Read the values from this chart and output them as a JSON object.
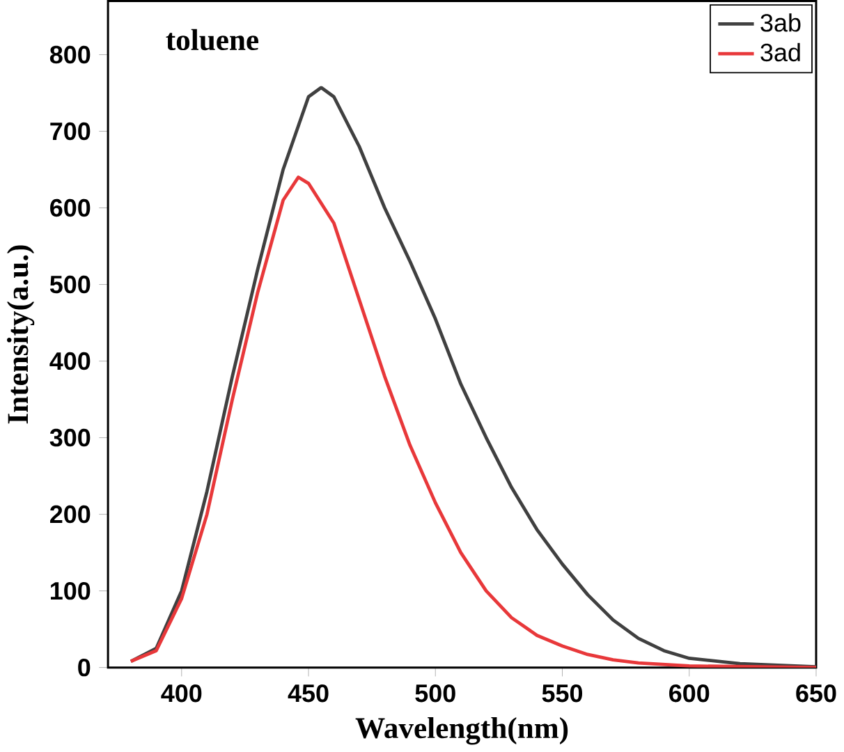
{
  "chart_data": {
    "type": "line",
    "xlabel": "Wavelength(nm)",
    "ylabel": "Intensity(a.u.)",
    "annotations": [
      "toluene"
    ],
    "xlim": [
      371,
      650
    ],
    "ylim": [
      0,
      870
    ],
    "xticks": [
      400,
      450,
      500,
      550,
      600,
      650
    ],
    "yticks": [
      0,
      100,
      200,
      300,
      400,
      500,
      600,
      700,
      800
    ],
    "legend": "top right",
    "grid": false,
    "marker": "none",
    "line_style": "solid",
    "series": [
      {
        "name": "3ab",
        "color": "#404040",
        "x": [
          380,
          390,
          400,
          410,
          420,
          430,
          440,
          450,
          455,
          460,
          470,
          480,
          490,
          500,
          510,
          520,
          530,
          540,
          550,
          560,
          570,
          580,
          590,
          600,
          620,
          650
        ],
        "values": [
          8,
          25,
          100,
          230,
          380,
          520,
          650,
          745,
          757,
          745,
          680,
          600,
          530,
          455,
          370,
          300,
          235,
          180,
          135,
          95,
          62,
          38,
          22,
          12,
          5,
          1
        ]
      },
      {
        "name": "3ad",
        "color": "#e8383a",
        "x": [
          380,
          390,
          400,
          410,
          420,
          430,
          440,
          446,
          450,
          460,
          470,
          480,
          490,
          500,
          510,
          520,
          530,
          540,
          550,
          560,
          570,
          580,
          600,
          650
        ],
        "values": [
          8,
          22,
          90,
          200,
          350,
          490,
          610,
          640,
          632,
          580,
          480,
          380,
          290,
          215,
          150,
          100,
          65,
          42,
          28,
          17,
          10,
          6,
          2,
          0
        ]
      }
    ]
  }
}
